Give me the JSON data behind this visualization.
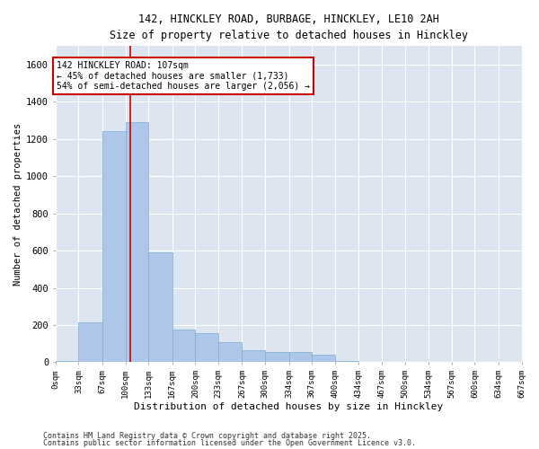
{
  "title1": "142, HINCKLEY ROAD, BURBAGE, HINCKLEY, LE10 2AH",
  "title2": "Size of property relative to detached houses in Hinckley",
  "xlabel": "Distribution of detached houses by size in Hinckley",
  "ylabel": "Number of detached properties",
  "bar_color": "#aec6e8",
  "bar_edge_color": "#7aadd4",
  "background_color": "#dde6f0",
  "grid_color": "#ffffff",
  "annotation_text": "142 HINCKLEY ROAD: 107sqm\n← 45% of detached houses are smaller (1,733)\n54% of semi-detached houses are larger (2,056) →",
  "vline_x": 107,
  "vline_color": "#cc0000",
  "bin_edges": [
    0,
    33,
    67,
    100,
    133,
    167,
    200,
    233,
    267,
    300,
    334,
    367,
    400,
    434,
    467,
    500,
    534,
    567,
    600,
    634,
    667
  ],
  "bar_heights": [
    5,
    215,
    1245,
    1290,
    590,
    175,
    155,
    110,
    65,
    55,
    55,
    40,
    5,
    0,
    0,
    0,
    0,
    0,
    0,
    0
  ],
  "ylim": [
    0,
    1700
  ],
  "yticks": [
    0,
    200,
    400,
    600,
    800,
    1000,
    1200,
    1400,
    1600
  ],
  "footnote1": "Contains HM Land Registry data © Crown copyright and database right 2025.",
  "footnote2": "Contains public sector information licensed under the Open Government Licence v3.0.",
  "fig_width": 6.0,
  "fig_height": 5.0,
  "fig_dpi": 100
}
